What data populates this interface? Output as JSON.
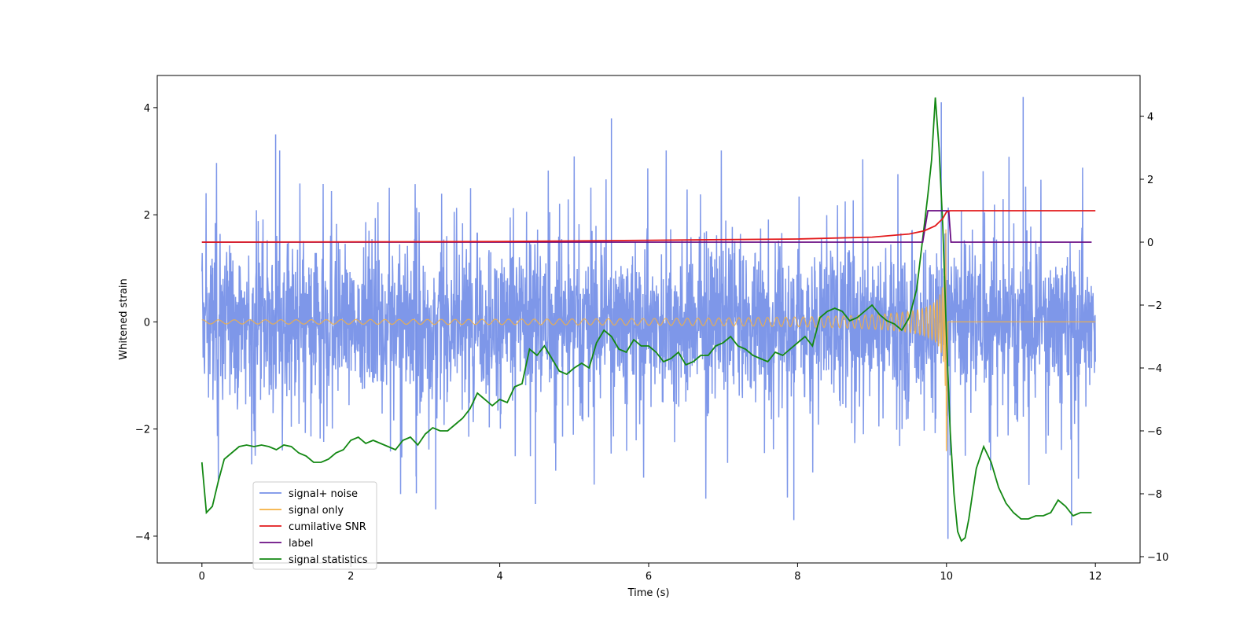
{
  "chart_data": {
    "type": "line",
    "xlabel": "Time (s)",
    "ylabel": "Whitened strain",
    "xlim": [
      -0.6,
      12.6
    ],
    "ylim": [
      -4.5,
      4.6
    ],
    "ylim_right": [
      -10.2,
      5.3
    ],
    "x_ticks": [
      0,
      2,
      4,
      6,
      8,
      10,
      12
    ],
    "x_tick_labels": [
      "0",
      "2",
      "4",
      "6",
      "8",
      "10",
      "12"
    ],
    "y_ticks": [
      -4,
      -2,
      0,
      2,
      4
    ],
    "y_tick_labels": [
      "−4",
      "−2",
      "0",
      "2",
      "4"
    ],
    "y2_ticks": [
      -10,
      -8,
      -6,
      -4,
      -2,
      0,
      2,
      4
    ],
    "y2_tick_labels": [
      "−10",
      "−8",
      "−6",
      "−4",
      "−2",
      "0",
      "2",
      "4"
    ],
    "grid": false,
    "legend_position": "lower-left",
    "series": [
      {
        "name": "signal+ noise",
        "color": "#7791e8",
        "axis": "left",
        "x_range": [
          0,
          12
        ],
        "noise_band_y": [
          -1.3,
          1.3
        ],
        "notable_spikes": [
          [
            0.99,
            3.5
          ],
          [
            5.5,
            3.8
          ],
          [
            9.93,
            4.1
          ],
          [
            11.03,
            4.2
          ],
          [
            7.95,
            -3.7
          ],
          [
            10.02,
            -4.05
          ],
          [
            11.68,
            -3.8
          ],
          [
            3.14,
            -3.5
          ],
          [
            4.48,
            -3.4
          ],
          [
            2.88,
            -3.2
          ]
        ]
      },
      {
        "name": "signal only",
        "color": "#f5b041",
        "axis": "left",
        "x_range": [
          0,
          12
        ],
        "merger_time": 10.0,
        "peak_amplitude": 3.4
      },
      {
        "name": "cumilative SNR",
        "color": "#e31a1c",
        "axis": "right",
        "x": [
          0,
          4,
          6,
          8,
          9,
          9.5,
          9.7,
          9.85,
          9.95,
          10.0,
          10.05,
          12
        ],
        "y": [
          0,
          0.02,
          0.06,
          0.1,
          0.16,
          0.26,
          0.36,
          0.52,
          0.75,
          0.96,
          1.0,
          1.0
        ]
      },
      {
        "name": "label",
        "color": "#6a0d83",
        "axis": "right",
        "x": [
          0,
          9.68,
          9.75,
          10.03,
          10.06,
          11.95
        ],
        "y": [
          0,
          0,
          1,
          1,
          0,
          0
        ]
      },
      {
        "name": "signal statistics",
        "color": "#138813",
        "axis": "right",
        "x": [
          0.0,
          0.06,
          0.14,
          0.22,
          0.3,
          0.4,
          0.5,
          0.6,
          0.7,
          0.8,
          0.9,
          1.0,
          1.1,
          1.2,
          1.3,
          1.4,
          1.5,
          1.6,
          1.7,
          1.8,
          1.9,
          2.0,
          2.1,
          2.2,
          2.3,
          2.4,
          2.5,
          2.6,
          2.7,
          2.8,
          2.9,
          3.0,
          3.1,
          3.2,
          3.3,
          3.4,
          3.5,
          3.6,
          3.7,
          3.8,
          3.9,
          4.0,
          4.1,
          4.2,
          4.3,
          4.4,
          4.5,
          4.6,
          4.7,
          4.8,
          4.9,
          5.0,
          5.1,
          5.2,
          5.3,
          5.4,
          5.5,
          5.6,
          5.7,
          5.8,
          5.9,
          6.0,
          6.1,
          6.2,
          6.3,
          6.4,
          6.5,
          6.6,
          6.7,
          6.8,
          6.9,
          7.0,
          7.1,
          7.2,
          7.3,
          7.4,
          7.5,
          7.6,
          7.7,
          7.8,
          7.9,
          8.0,
          8.1,
          8.2,
          8.3,
          8.4,
          8.5,
          8.6,
          8.7,
          8.8,
          8.9,
          9.0,
          9.1,
          9.2,
          9.3,
          9.4,
          9.5,
          9.6,
          9.7,
          9.75,
          9.8,
          9.85,
          9.9,
          9.95,
          10.0,
          10.05,
          10.1,
          10.15,
          10.2,
          10.25,
          10.3,
          10.35,
          10.4,
          10.5,
          10.6,
          10.7,
          10.8,
          10.9,
          11.0,
          11.1,
          11.2,
          11.3,
          11.4,
          11.5,
          11.6,
          11.7,
          11.8,
          11.9,
          11.95
        ],
        "y": [
          -7.0,
          -8.6,
          -8.4,
          -7.6,
          -6.9,
          -6.7,
          -6.5,
          -6.45,
          -6.5,
          -6.45,
          -6.5,
          -6.6,
          -6.45,
          -6.5,
          -6.7,
          -6.8,
          -7.0,
          -7.0,
          -6.9,
          -6.7,
          -6.6,
          -6.3,
          -6.2,
          -6.4,
          -6.3,
          -6.4,
          -6.5,
          -6.6,
          -6.3,
          -6.2,
          -6.45,
          -6.1,
          -5.9,
          -6.0,
          -6.0,
          -5.8,
          -5.6,
          -5.3,
          -4.8,
          -5.0,
          -5.2,
          -5.0,
          -5.1,
          -4.6,
          -4.5,
          -3.4,
          -3.6,
          -3.3,
          -3.7,
          -4.1,
          -4.2,
          -4.0,
          -3.85,
          -4.0,
          -3.2,
          -2.8,
          -3.0,
          -3.4,
          -3.5,
          -3.1,
          -3.3,
          -3.3,
          -3.5,
          -3.8,
          -3.7,
          -3.5,
          -3.9,
          -3.8,
          -3.6,
          -3.6,
          -3.3,
          -3.2,
          -3.0,
          -3.3,
          -3.4,
          -3.6,
          -3.7,
          -3.8,
          -3.5,
          -3.6,
          -3.4,
          -3.2,
          -3.0,
          -3.3,
          -2.4,
          -2.2,
          -2.1,
          -2.2,
          -2.5,
          -2.4,
          -2.2,
          -2.0,
          -2.3,
          -2.5,
          -2.6,
          -2.8,
          -2.4,
          -1.5,
          0.5,
          1.5,
          2.6,
          4.6,
          3.0,
          0.5,
          -3.0,
          -6.0,
          -8.0,
          -9.2,
          -9.5,
          -9.4,
          -8.8,
          -8.0,
          -7.2,
          -6.5,
          -7.0,
          -7.8,
          -8.3,
          -8.6,
          -8.8,
          -8.8,
          -8.7,
          -8.7,
          -8.6,
          -8.2,
          -8.4,
          -8.7,
          -8.6,
          -8.6,
          -8.6
        ]
      }
    ]
  }
}
